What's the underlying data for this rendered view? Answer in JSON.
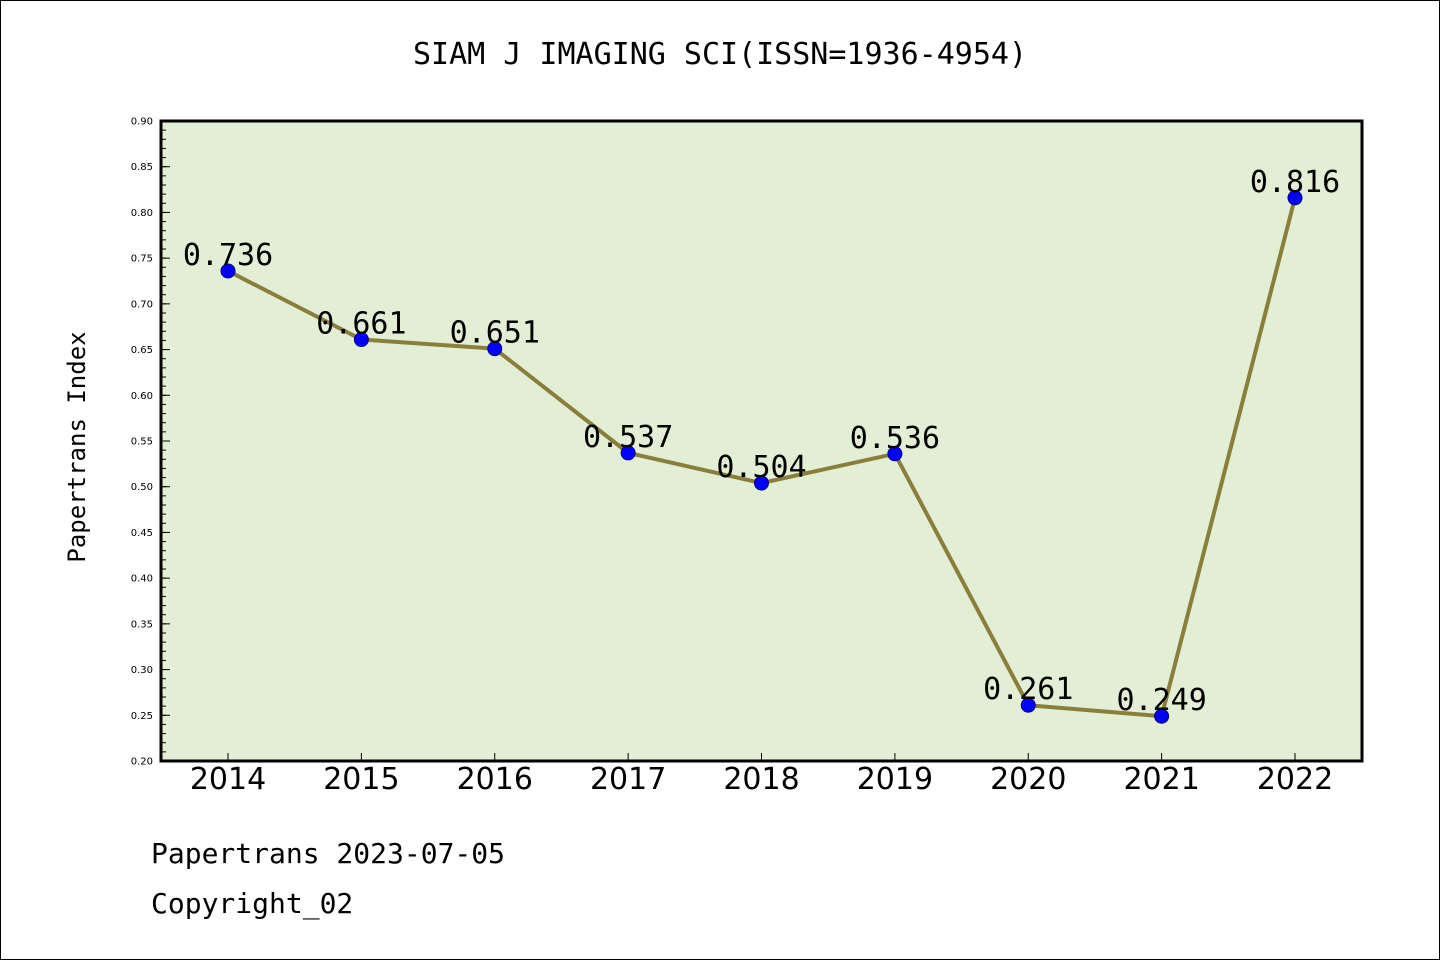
{
  "chart_data": {
    "type": "line",
    "title": "SIAM J IMAGING SCI(ISSN=1936-4954)",
    "xlabel": "",
    "ylabel": "Papertrans Index",
    "categories": [
      "2014",
      "2015",
      "2016",
      "2017",
      "2018",
      "2019",
      "2020",
      "2021",
      "2022"
    ],
    "series": [
      {
        "values": [
          0.736,
          0.661,
          0.651,
          0.537,
          0.504,
          0.536,
          0.261,
          0.249,
          0.816
        ],
        "labels": [
          "0.736",
          "0.661",
          "0.651",
          "0.537",
          "0.504",
          "0.536",
          "0.261",
          "0.249",
          "0.816"
        ]
      }
    ],
    "ylim": [
      0.2,
      0.9
    ],
    "yticks": [
      "0.20",
      "0.25",
      "0.30",
      "0.35",
      "0.40",
      "0.45",
      "0.50",
      "0.55",
      "0.60",
      "0.65",
      "0.70",
      "0.75",
      "0.80",
      "0.85",
      "0.90"
    ],
    "grid": false,
    "legend": "none",
    "colors": {
      "plot_background": "#e2efd5",
      "line": "#8b7d3a",
      "marker": "#0000ff",
      "marker_edge": "#000080",
      "axis": "#000000"
    }
  },
  "footer": {
    "date_line": "Papertrans 2023-07-05",
    "copyright_line": "Copyright_02"
  }
}
